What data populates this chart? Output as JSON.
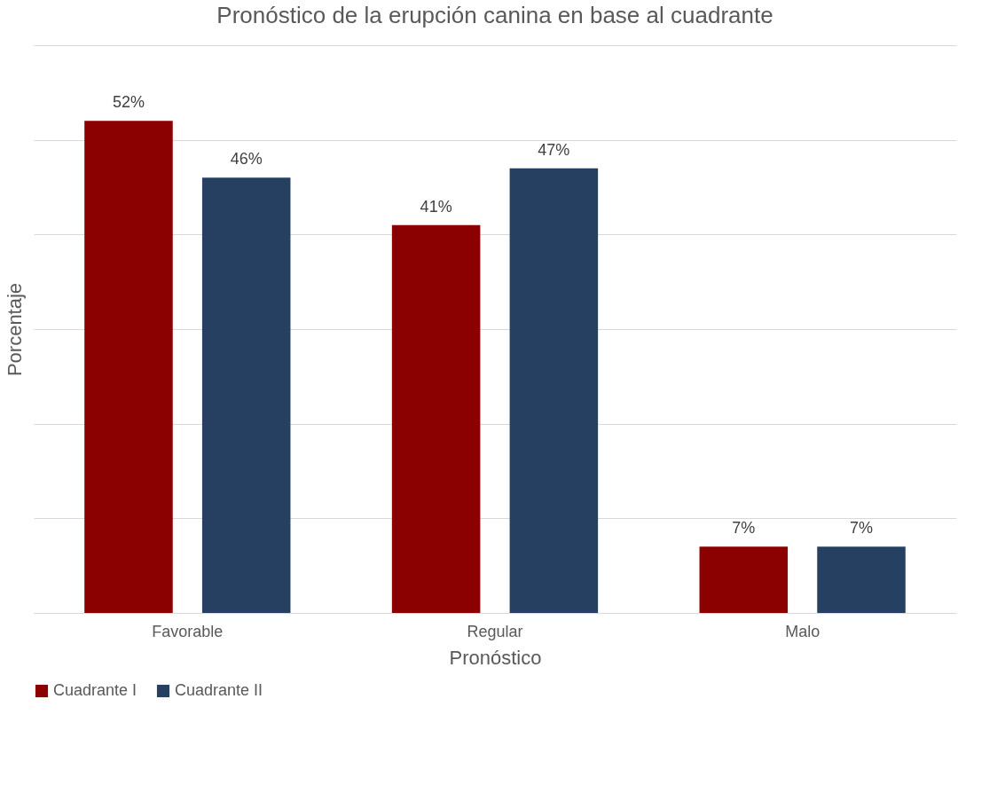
{
  "chart_data": {
    "type": "bar",
    "title": "Pronóstico de la erupción canina en base al cuadrante",
    "xlabel": "Pronóstico",
    "ylabel": "Porcentaje",
    "categories": [
      "Favorable",
      "Regular",
      "Malo"
    ],
    "series": [
      {
        "name": "Cuadrante I",
        "color": "#8b0000",
        "values": [
          52,
          41,
          7
        ],
        "value_labels": [
          "52%",
          "41%",
          "7%"
        ]
      },
      {
        "name": "Cuadrante II",
        "color": "#264061",
        "values": [
          46,
          47,
          7
        ],
        "value_labels": [
          "46%",
          "47%",
          "7%"
        ]
      }
    ],
    "ylim": [
      0,
      60
    ],
    "yticks": [
      {
        "value": 0,
        "label": null
      },
      {
        "value": 10,
        "label": null
      },
      {
        "value": 20,
        "label": null
      },
      {
        "value": 30,
        "label": null
      },
      {
        "value": 40,
        "label": null
      },
      {
        "value": 50,
        "label": null
      },
      {
        "value": 60,
        "label": null
      }
    ],
    "tick_labels": "x",
    "grid": "y",
    "legend": "bottom"
  }
}
